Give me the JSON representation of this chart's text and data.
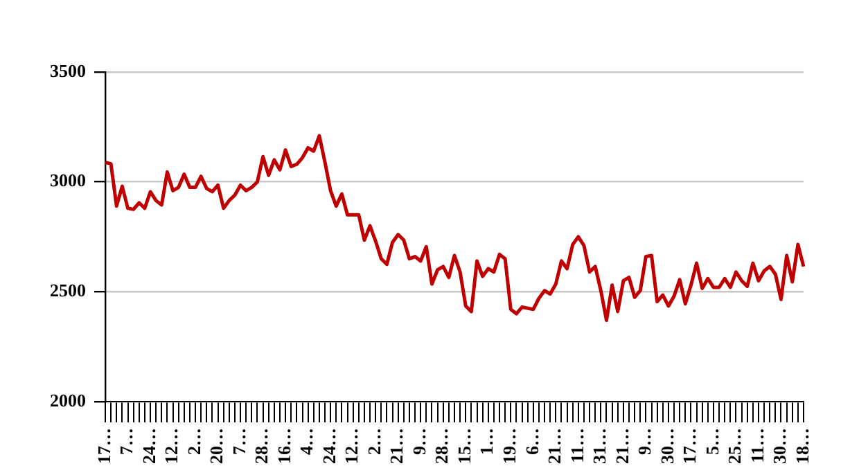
{
  "chart_data": {
    "type": "line",
    "categories": [
      "17…",
      null,
      null,
      null,
      "7…",
      null,
      null,
      null,
      "24…",
      null,
      null,
      null,
      "12…",
      null,
      null,
      null,
      "2…",
      null,
      null,
      null,
      "20…",
      null,
      null,
      null,
      "7…",
      null,
      null,
      null,
      "28…",
      null,
      null,
      null,
      "16…",
      null,
      null,
      null,
      "4…",
      null,
      null,
      null,
      "24…",
      null,
      null,
      null,
      "12…",
      null,
      null,
      null,
      "2…",
      null,
      null,
      null,
      "21…",
      null,
      null,
      null,
      "9…",
      null,
      null,
      null,
      "28…",
      null,
      null,
      null,
      "15…",
      null,
      null,
      null,
      "1…",
      null,
      null,
      null,
      "19…",
      null,
      null,
      null,
      "6…",
      null,
      null,
      null,
      "21…",
      null,
      null,
      null,
      "11…",
      null,
      null,
      null,
      "31…",
      null,
      null,
      null,
      "21…",
      null,
      null,
      null,
      "9…",
      null,
      null,
      null,
      "30…",
      null,
      null,
      null,
      "17…",
      null,
      null,
      null,
      "5…",
      null,
      null,
      null,
      "25…",
      null,
      null,
      null,
      "11…",
      null,
      null,
      null,
      "30…",
      null,
      null,
      null,
      "18…"
    ],
    "values": [
      3089,
      3082,
      2890,
      2980,
      2880,
      2875,
      2905,
      2880,
      2955,
      2915,
      2895,
      3045,
      2960,
      2975,
      3035,
      2975,
      2975,
      3025,
      2970,
      2955,
      2985,
      2880,
      2915,
      2940,
      2985,
      2960,
      2975,
      3000,
      3115,
      3030,
      3100,
      3055,
      3145,
      3070,
      3080,
      3110,
      3155,
      3140,
      3210,
      3090,
      2960,
      2890,
      2945,
      2850,
      2850,
      2850,
      2735,
      2800,
      2730,
      2650,
      2625,
      2725,
      2760,
      2735,
      2650,
      2660,
      2640,
      2705,
      2535,
      2600,
      2615,
      2565,
      2665,
      2590,
      2435,
      2410,
      2640,
      2570,
      2605,
      2590,
      2670,
      2650,
      2420,
      2400,
      2430,
      2425,
      2420,
      2470,
      2505,
      2490,
      2535,
      2640,
      2605,
      2715,
      2750,
      2710,
      2590,
      2615,
      2505,
      2370,
      2530,
      2410,
      2550,
      2565,
      2475,
      2505,
      2660,
      2665,
      2455,
      2485,
      2435,
      2480,
      2555,
      2445,
      2530,
      2630,
      2515,
      2560,
      2520,
      2520,
      2560,
      2520,
      2590,
      2550,
      2525,
      2630,
      2550,
      2595,
      2615,
      2580,
      2465,
      2665,
      2545,
      2715,
      2615
    ],
    "color": "#c00000",
    "ylim": [
      2000,
      3500
    ],
    "yticks": [
      2000,
      2500,
      3000,
      3500
    ],
    "grid": "y"
  }
}
